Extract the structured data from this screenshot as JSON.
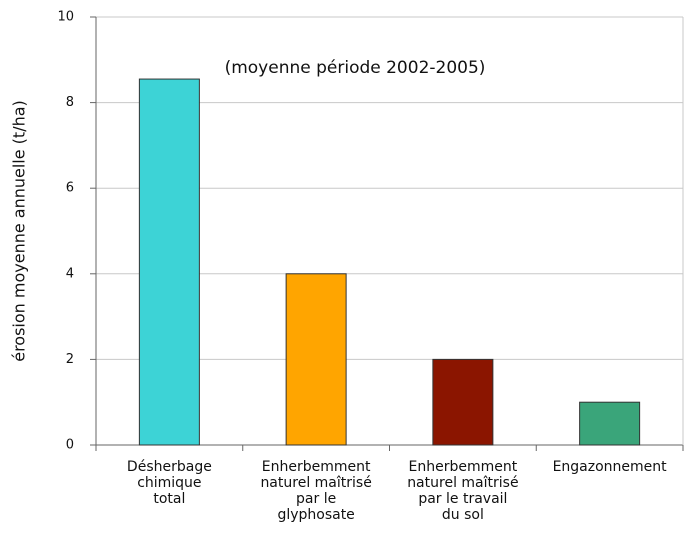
{
  "chart_data": {
    "type": "bar",
    "annotation": "(moyenne période 2002-2005)",
    "y_label": "érosion moyenne annuelle (t/ha)",
    "categories": [
      [
        "Désherbage",
        "chimique",
        "total"
      ],
      [
        "Enherbemment",
        "naturel maîtrisé",
        "par le",
        "glyphosate"
      ],
      [
        "Enherbemment",
        "naturel maîtrisé",
        "par le travail",
        "du sol"
      ],
      [
        "Engazonnement"
      ]
    ],
    "values": [
      8.55,
      4,
      2,
      1
    ],
    "colors": [
      "#3dd3d6",
      "#ffa500",
      "#8b1500",
      "#3aa57a"
    ],
    "ylim": [
      0,
      10
    ],
    "yticks": [
      0,
      2,
      4,
      6,
      8,
      10
    ],
    "grid": true
  }
}
